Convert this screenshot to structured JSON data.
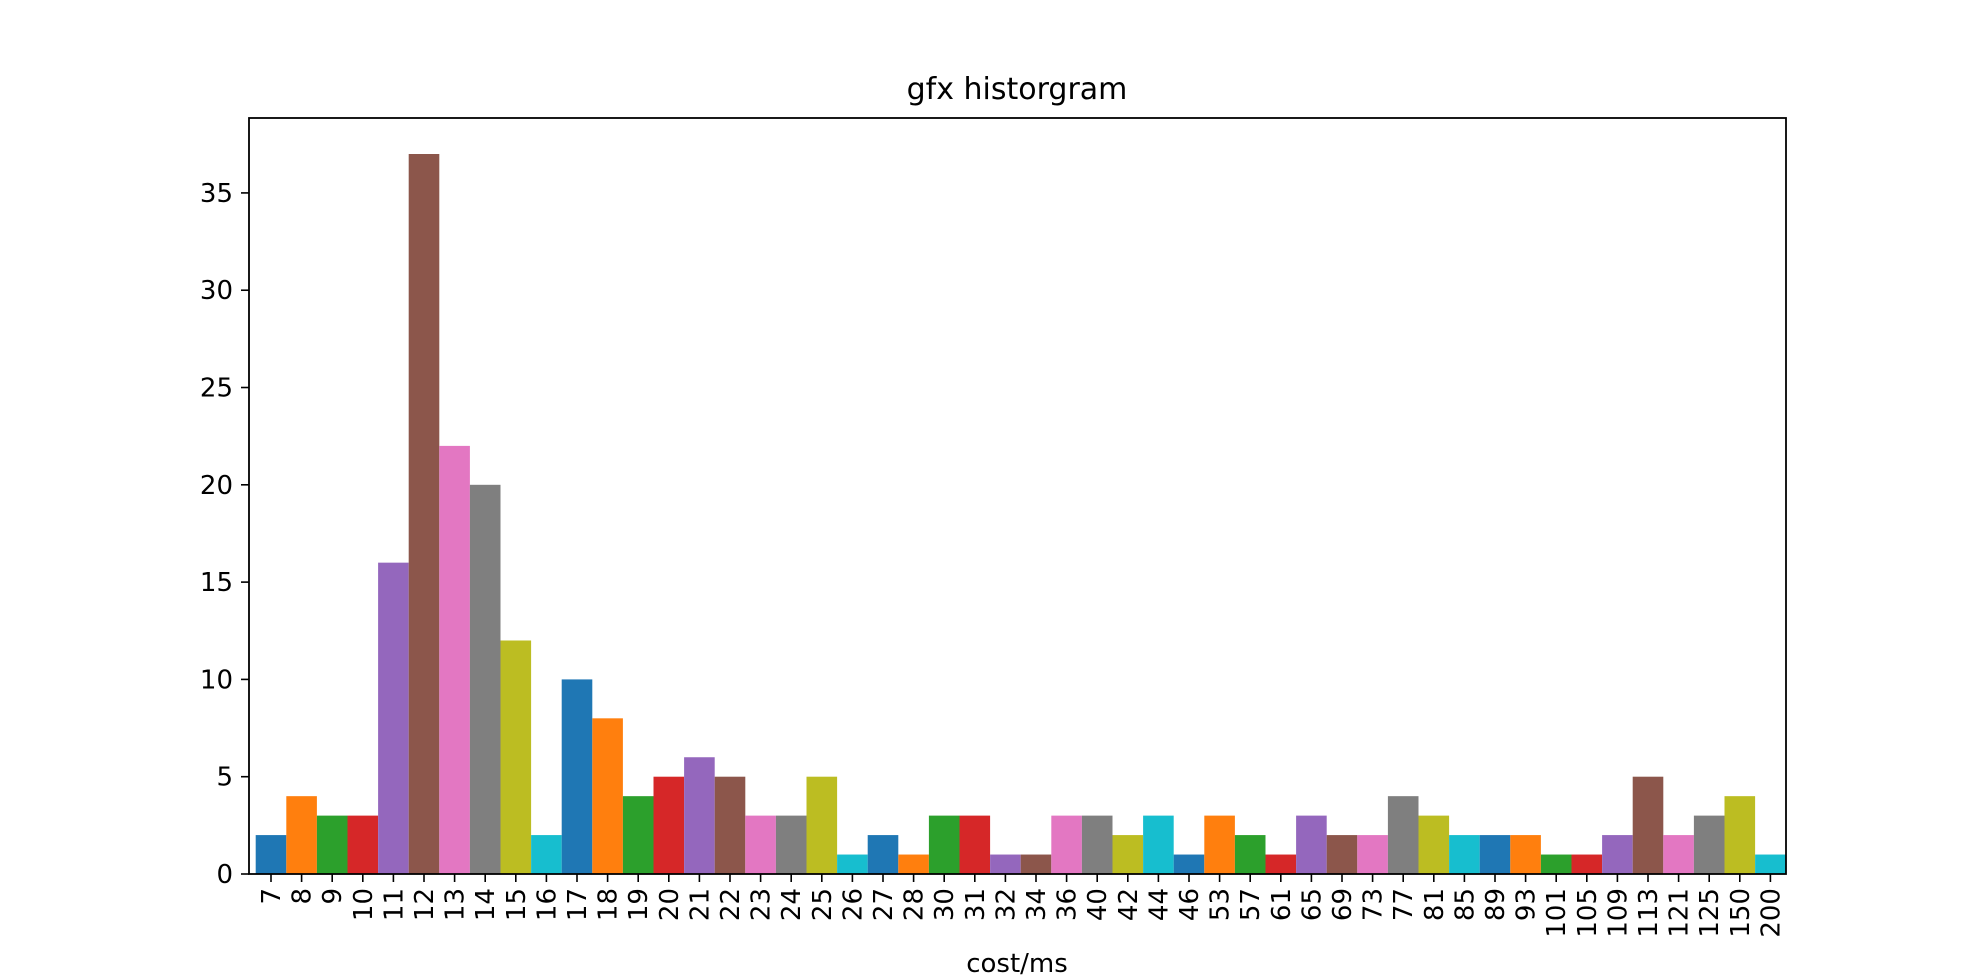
{
  "chart_data": {
    "type": "bar",
    "title": "gfx historgram",
    "xlabel": "cost/ms",
    "ylabel": "",
    "categories": [
      "7",
      "8",
      "9",
      "10",
      "11",
      "12",
      "13",
      "14",
      "15",
      "16",
      "17",
      "18",
      "19",
      "20",
      "21",
      "22",
      "23",
      "24",
      "25",
      "26",
      "27",
      "28",
      "30",
      "31",
      "32",
      "34",
      "36",
      "40",
      "42",
      "44",
      "46",
      "53",
      "57",
      "61",
      "65",
      "69",
      "73",
      "77",
      "81",
      "85",
      "89",
      "93",
      "101",
      "105",
      "109",
      "113",
      "121",
      "125",
      "150",
      "200"
    ],
    "values": [
      2,
      4,
      3,
      3,
      16,
      37,
      22,
      20,
      12,
      2,
      10,
      8,
      4,
      5,
      6,
      5,
      3,
      3,
      5,
      1,
      2,
      1,
      3,
      3,
      1,
      1,
      3,
      3,
      2,
      3,
      1,
      3,
      2,
      1,
      3,
      2,
      2,
      4,
      3,
      2,
      2,
      2,
      1,
      1,
      2,
      5,
      2,
      3,
      4,
      1
    ],
    "colors": [
      "#1f77b4",
      "#ff7f0e",
      "#2ca02c",
      "#d62728",
      "#9467bd",
      "#8c564b",
      "#e377c2",
      "#7f7f7f",
      "#bcbd22",
      "#17becf"
    ],
    "ylim": [
      0,
      38.85
    ],
    "yticks": [
      0,
      5,
      10,
      15,
      20,
      25,
      30,
      35
    ],
    "grid": false,
    "legend": "none"
  }
}
